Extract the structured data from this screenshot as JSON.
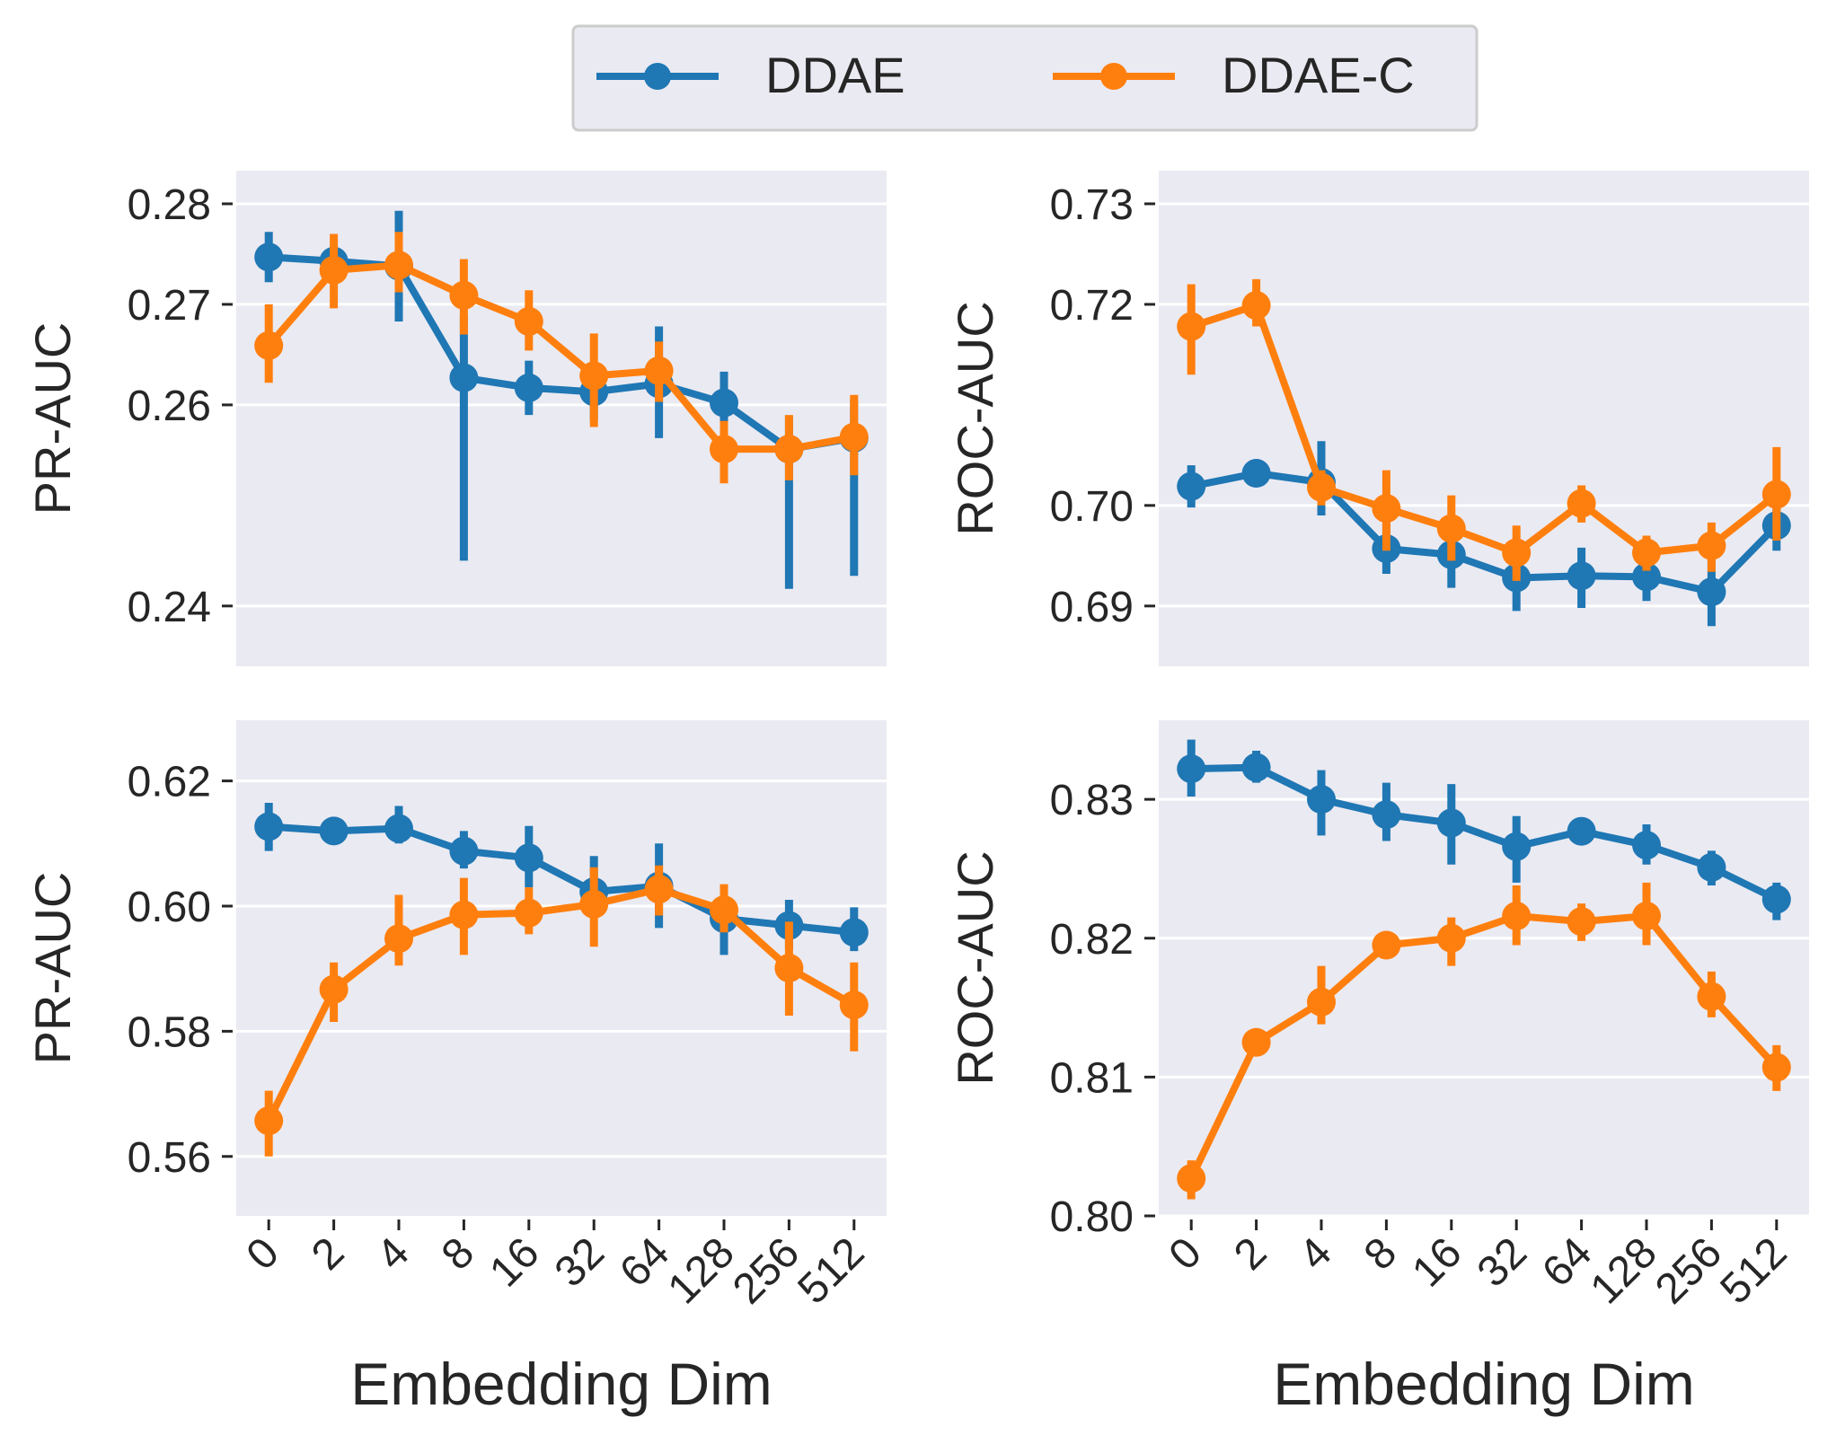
{
  "legend": {
    "entries": [
      {
        "name": "DDAE",
        "color": "#1f77b4"
      },
      {
        "name": "DDAE-C",
        "color": "#ff7f0e"
      }
    ]
  },
  "chart_data": [
    {
      "type": "line",
      "position": "top-left",
      "ylabel": "PR-AUC",
      "xlabel": "",
      "categories": [
        "0",
        "2",
        "4",
        "8",
        "16",
        "32",
        "64",
        "128",
        "256",
        "512"
      ],
      "ylim": [
        0.234,
        0.2833
      ],
      "yticks": [
        "0.24",
        "0.26",
        "0.27",
        "0.28"
      ],
      "ytick_values": [
        0.24,
        0.26,
        0.27,
        0.28
      ],
      "grid": true,
      "show_xticks": false,
      "series": [
        {
          "name": "DDAE",
          "color": "#1f77b4",
          "values": [
            0.2747,
            0.2743,
            0.2738,
            0.2627,
            0.2617,
            0.2613,
            0.2621,
            0.2602,
            0.2556,
            0.2567
          ],
          "err_low": [
            0.2722,
            0.2728,
            0.2683,
            0.2445,
            0.259,
            0.2585,
            0.2567,
            0.2578,
            0.2417,
            0.243
          ],
          "err_high": [
            0.2772,
            0.2758,
            0.2793,
            0.2689,
            0.2644,
            0.2642,
            0.2678,
            0.2633,
            0.2588,
            0.2605
          ]
        },
        {
          "name": "DDAE-C",
          "color": "#ff7f0e",
          "values": [
            0.2659,
            0.2734,
            0.2739,
            0.2709,
            0.2683,
            0.2629,
            0.2634,
            0.2556,
            0.2556,
            0.2568
          ],
          "err_low": [
            0.2622,
            0.2696,
            0.2712,
            0.267,
            0.2654,
            0.2578,
            0.2603,
            0.2522,
            0.2525,
            0.253
          ],
          "err_high": [
            0.27,
            0.277,
            0.2772,
            0.2745,
            0.2714,
            0.2671,
            0.2663,
            0.2584,
            0.259,
            0.261
          ]
        }
      ]
    },
    {
      "type": "line",
      "position": "top-right",
      "ylabel": "ROC-AUC",
      "xlabel": "",
      "categories": [
        "0",
        "2",
        "4",
        "8",
        "16",
        "32",
        "64",
        "128",
        "256",
        "512"
      ],
      "ylim": [
        0.684,
        0.7333
      ],
      "yticks": [
        "0.69",
        "0.70",
        "0.72",
        "0.73"
      ],
      "ytick_values": [
        0.69,
        0.7,
        0.72,
        0.73
      ],
      "grid": true,
      "show_xticks": false,
      "series": [
        {
          "name": "DDAE",
          "color": "#1f77b4",
          "values": [
            0.7019,
            0.7032,
            0.7023,
            0.6957,
            0.6951,
            0.6928,
            0.693,
            0.6929,
            0.6914,
            0.698
          ],
          "err_low": [
            0.6998,
            0.702,
            0.699,
            0.6932,
            0.6918,
            0.6895,
            0.6898,
            0.6905,
            0.688,
            0.6955
          ],
          "err_high": [
            0.704,
            0.7043,
            0.7064,
            0.6982,
            0.6983,
            0.6961,
            0.6958,
            0.6953,
            0.6946,
            0.7005
          ]
        },
        {
          "name": "DDAE-C",
          "color": "#ff7f0e",
          "values": [
            0.7178,
            0.7199,
            0.7018,
            0.6997,
            0.6977,
            0.6953,
            0.7002,
            0.6953,
            0.696,
            0.7011
          ],
          "err_low": [
            0.713,
            0.7178,
            0.7,
            0.6955,
            0.6945,
            0.6925,
            0.6983,
            0.6935,
            0.6934,
            0.6965
          ],
          "err_high": [
            0.722,
            0.7225,
            0.7035,
            0.7035,
            0.701,
            0.698,
            0.702,
            0.697,
            0.6983,
            0.7058
          ]
        }
      ]
    },
    {
      "type": "line",
      "position": "bottom-left",
      "ylabel": "PR-AUC",
      "xlabel": "Embedding Dim",
      "categories": [
        "0",
        "2",
        "4",
        "8",
        "16",
        "32",
        "64",
        "128",
        "256",
        "512"
      ],
      "ylim": [
        0.5505,
        0.6297
      ],
      "yticks": [
        "0.56",
        "0.58",
        "0.60",
        "0.62"
      ],
      "ytick_values": [
        0.56,
        0.58,
        0.6,
        0.62
      ],
      "grid": true,
      "show_xticks": true,
      "series": [
        {
          "name": "DDAE",
          "color": "#1f77b4",
          "values": [
            0.6127,
            0.612,
            0.6124,
            0.6088,
            0.6077,
            0.6023,
            0.6032,
            0.598,
            0.5969,
            0.5958
          ],
          "err_low": [
            0.6088,
            0.6105,
            0.61,
            0.606,
            0.603,
            0.599,
            0.5965,
            0.5922,
            0.593,
            0.5928
          ],
          "err_high": [
            0.6165,
            0.6138,
            0.616,
            0.612,
            0.6128,
            0.608,
            0.61,
            0.6012,
            0.601,
            0.5998
          ]
        },
        {
          "name": "DDAE-C",
          "color": "#ff7f0e",
          "values": [
            0.5657,
            0.5867,
            0.5948,
            0.5986,
            0.5989,
            0.6003,
            0.6027,
            0.5994,
            0.5901,
            0.5842
          ],
          "err_low": [
            0.56,
            0.5815,
            0.5905,
            0.5922,
            0.5955,
            0.5935,
            0.5985,
            0.5958,
            0.5825,
            0.5768
          ],
          "err_high": [
            0.5705,
            0.591,
            0.6018,
            0.6045,
            0.603,
            0.6062,
            0.6065,
            0.6035,
            0.5975,
            0.591
          ]
        }
      ]
    },
    {
      "type": "line",
      "position": "bottom-right",
      "ylabel": "ROC-AUC",
      "xlabel": "Embedding Dim",
      "categories": [
        "0",
        "2",
        "4",
        "8",
        "16",
        "32",
        "64",
        "128",
        "256",
        "512"
      ],
      "ylim": [
        0.8,
        0.8357
      ],
      "yticks": [
        "0.80",
        "0.81",
        "0.82",
        "0.83"
      ],
      "ytick_values": [
        0.8,
        0.81,
        0.82,
        0.83
      ],
      "grid": true,
      "show_xticks": true,
      "series": [
        {
          "name": "DDAE",
          "color": "#1f77b4",
          "values": [
            0.8322,
            0.8323,
            0.83,
            0.8289,
            0.8283,
            0.8266,
            0.8277,
            0.8267,
            0.8251,
            0.8228
          ],
          "err_low": [
            0.8302,
            0.8312,
            0.8274,
            0.827,
            0.8253,
            0.824,
            0.8272,
            0.8253,
            0.8238,
            0.8213
          ],
          "err_high": [
            0.8343,
            0.8335,
            0.8321,
            0.8312,
            0.8311,
            0.8288,
            0.8283,
            0.8282,
            0.8263,
            0.824
          ]
        },
        {
          "name": "DDAE-C",
          "color": "#ff7f0e",
          "values": [
            0.8027,
            0.8125,
            0.8154,
            0.8195,
            0.82,
            0.8216,
            0.8212,
            0.8216,
            0.8158,
            0.8107
          ],
          "err_low": [
            0.8012,
            0.8115,
            0.8138,
            0.8188,
            0.818,
            0.8195,
            0.8198,
            0.8195,
            0.8143,
            0.809
          ],
          "err_high": [
            0.804,
            0.8133,
            0.818,
            0.82,
            0.8215,
            0.8238,
            0.8225,
            0.824,
            0.8176,
            0.8123
          ]
        }
      ]
    }
  ]
}
